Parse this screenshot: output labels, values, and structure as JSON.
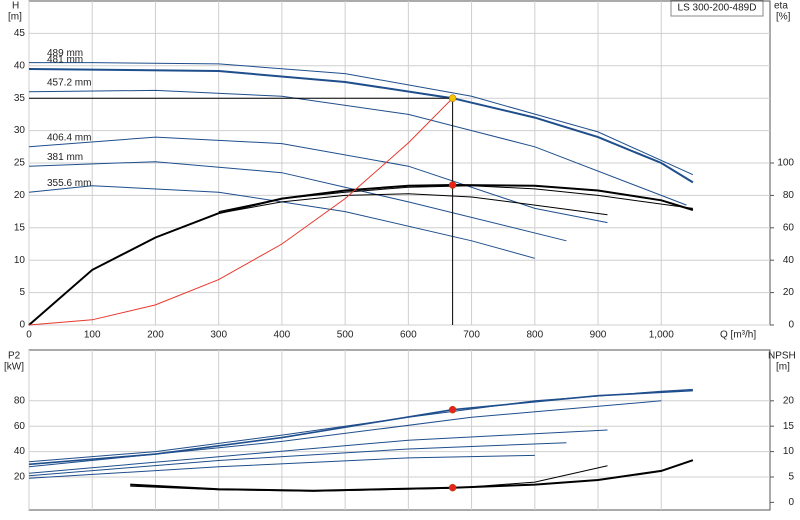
{
  "chart_data": [
    {
      "type": "line",
      "label": "LS 300-200-489D",
      "x_label": "Q [m³/h]",
      "y_label": "H",
      "y_unit": "[m]",
      "y2_label": "eta",
      "y2_unit": "[%]",
      "xlim": [
        0,
        1172
      ],
      "xticks": [
        0,
        100,
        200,
        300,
        400,
        500,
        600,
        700,
        800,
        900,
        {
          "value": 1000,
          "label": "1,000"
        }
      ],
      "ylim": [
        0,
        50
      ],
      "yticks": [
        0,
        5,
        10,
        15,
        20,
        25,
        30,
        35,
        40,
        45
      ],
      "y2lim": [
        0,
        200
      ],
      "y2ticks": [
        0,
        20,
        40,
        60,
        80,
        100
      ],
      "grid": true,
      "series": [
        {
          "name": "489 mm",
          "color": "#1f4e8c",
          "x": [
            0,
            100,
            300,
            500,
            700,
            900,
            1050
          ],
          "values": [
            40.5,
            40.5,
            40.3,
            38.8,
            35.3,
            29.8,
            23.2
          ]
        },
        {
          "name": "481 mm",
          "color": "#1f4e8c",
          "width": 2,
          "x": [
            0,
            300,
            500,
            670,
            800,
            900,
            1000,
            1050
          ],
          "values": [
            39.5,
            39.2,
            37.5,
            35,
            32,
            29,
            25,
            22
          ]
        },
        {
          "name": "457.2 mm",
          "color": "#1f4e8c",
          "x": [
            0,
            200,
            400,
            600,
            800,
            1000,
            1040
          ],
          "values": [
            36,
            36.2,
            35.3,
            32.5,
            27.5,
            20,
            18.5
          ]
        },
        {
          "name": "406.4 mm",
          "color": "#1f4e8c",
          "x": [
            0,
            200,
            400,
            600,
            800,
            915
          ],
          "values": [
            27.5,
            29,
            28,
            24.5,
            18,
            15.8
          ]
        },
        {
          "name": "381 mm",
          "color": "#1f4e8c",
          "x": [
            0,
            200,
            400,
            600,
            850
          ],
          "values": [
            24.5,
            25.2,
            23.5,
            19,
            13
          ]
        },
        {
          "name": "355.6 mm",
          "color": "#1f4e8c",
          "x": [
            0,
            100,
            300,
            500,
            700,
            800
          ],
          "values": [
            20.5,
            21.5,
            20.5,
            17.5,
            13,
            10.3
          ]
        },
        {
          "color": "#000000",
          "axis": "y2",
          "width": 2,
          "x": [
            0,
            100,
            200,
            300,
            400,
            500,
            600,
            670,
            800,
            900,
            1000,
            1050
          ],
          "values": [
            0,
            34,
            54,
            69,
            78,
            83,
            86,
            86.4,
            86,
            83,
            77,
            71
          ]
        },
        {
          "color": "#000000",
          "axis": "y2",
          "x": [
            300,
            400,
            500,
            600,
            700,
            800,
            900,
            1050
          ],
          "values": [
            70,
            78,
            82,
            85,
            86,
            84,
            80,
            72
          ]
        },
        {
          "color": "#000000",
          "axis": "y2",
          "x": [
            300,
            400,
            500,
            600,
            700,
            800,
            915
          ],
          "values": [
            69,
            76,
            80,
            81,
            79,
            74,
            68
          ]
        },
        {
          "color": "#e8372c",
          "x": [
            0,
            100,
            200,
            300,
            400,
            500,
            600,
            670
          ],
          "values": [
            0,
            0.8,
            3.1,
            7,
            12.5,
            19.5,
            28.1,
            35
          ]
        },
        {
          "color": "#f5c400",
          "marker": true,
          "guides": true,
          "x": [
            670
          ],
          "values": [
            35
          ]
        },
        {
          "color": "#e8231c",
          "marker": true,
          "axis": "y2",
          "x": [
            670
          ],
          "values": [
            86.4
          ]
        }
      ]
    },
    {
      "type": "line",
      "y_label": "P2",
      "y_unit": "[kW]",
      "y2_label": "NPSH",
      "y2_unit": "[m]",
      "xlim": [
        0,
        1172
      ],
      "ylim": [
        -6,
        120
      ],
      "yticks": [
        20,
        40,
        60,
        80
      ],
      "y2lim": [
        -1.5,
        30
      ],
      "y2ticks": [
        0,
        5,
        10,
        15,
        20
      ],
      "grid": true,
      "series": [
        {
          "color": "#1f4e8c",
          "x": [
            0,
            200,
            400,
            600,
            800,
            1000,
            1050
          ],
          "values": [
            32,
            40,
            53,
            67,
            80,
            87.5,
            89
          ]
        },
        {
          "color": "#1f4e8c",
          "width": 1.6,
          "x": [
            0,
            200,
            400,
            670,
            900,
            1050
          ],
          "values": [
            30,
            38,
            51,
            73,
            84,
            88
          ]
        },
        {
          "color": "#1f4e8c",
          "x": [
            0,
            400,
            700,
            1000
          ],
          "values": [
            28,
            48,
            67,
            80
          ]
        },
        {
          "color": "#1f4e8c",
          "x": [
            0,
            300,
            600,
            915
          ],
          "values": [
            23,
            36,
            49,
            57
          ]
        },
        {
          "color": "#1f4e8c",
          "x": [
            0,
            300,
            600,
            850
          ],
          "values": [
            21,
            33,
            42,
            47
          ]
        },
        {
          "color": "#1f4e8c",
          "x": [
            0,
            300,
            600,
            800
          ],
          "values": [
            19,
            28,
            35,
            37
          ]
        },
        {
          "color": "#000000",
          "axis": "y2",
          "width": 2,
          "x": [
            160,
            300,
            450,
            670,
            800,
            900,
            1000,
            1050
          ],
          "values": [
            3.5,
            2.6,
            2.3,
            2.9,
            3.5,
            4.4,
            6.2,
            8.3
          ]
        },
        {
          "color": "#000000",
          "axis": "y2",
          "x": [
            160,
            300,
            450,
            670,
            800,
            915
          ],
          "values": [
            3.2,
            2.5,
            2.2,
            2.8,
            4,
            7.2
          ]
        },
        {
          "color": "#e8231c",
          "marker": true,
          "x": [
            670
          ],
          "values": [
            73
          ]
        },
        {
          "color": "#e8231c",
          "marker": true,
          "axis": "y2",
          "x": [
            670
          ],
          "values": [
            2.9
          ]
        }
      ]
    }
  ]
}
